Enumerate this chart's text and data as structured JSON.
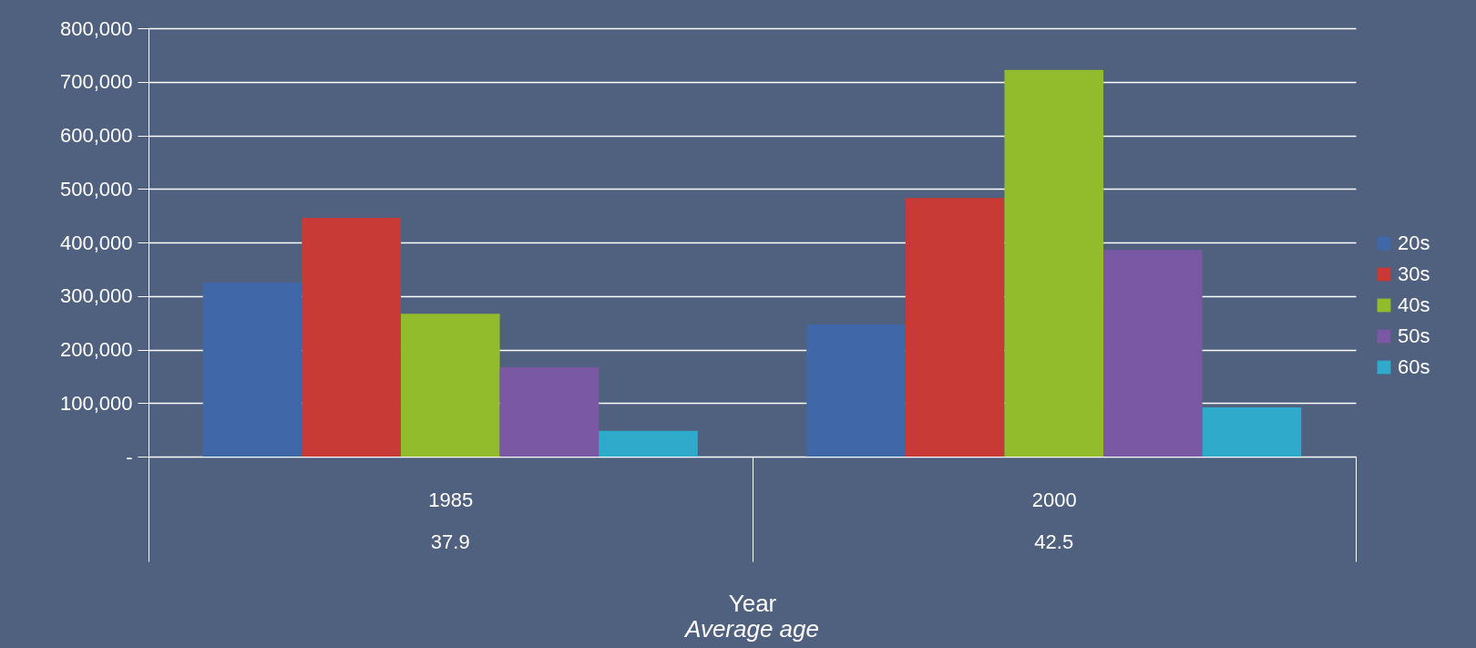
{
  "chart_data": {
    "type": "bar",
    "xlabel": "Year",
    "categories": [
      "1985",
      "2000"
    ],
    "series": [
      {
        "name": "20s",
        "color": "#4068a8",
        "values": [
          325000,
          247000
        ]
      },
      {
        "name": "30s",
        "color": "#c83a36",
        "values": [
          446000,
          483000
        ]
      },
      {
        "name": "40s",
        "color": "#92bc2c",
        "values": [
          267000,
          722000
        ]
      },
      {
        "name": "50s",
        "color": "#7a58a4",
        "values": [
          167000,
          386000
        ]
      },
      {
        "name": "60s",
        "color": "#30aacb",
        "values": [
          48000,
          92000
        ]
      }
    ],
    "ylim": [
      0,
      800000
    ],
    "yticks": [
      {
        "value": 0,
        "label": "-"
      },
      {
        "value": 100000,
        "label": "100,000"
      },
      {
        "value": 200000,
        "label": "200,000"
      },
      {
        "value": 300000,
        "label": "300,000"
      },
      {
        "value": 400000,
        "label": "400,000"
      },
      {
        "value": 500000,
        "label": "500,000"
      },
      {
        "value": 600000,
        "label": "600,000"
      },
      {
        "value": 700000,
        "label": "700,000"
      },
      {
        "value": 800000,
        "label": "800,000"
      }
    ],
    "grid": "y",
    "legend": "right",
    "annotations": [
      "37.9",
      "42.5",
      "Average age"
    ]
  }
}
